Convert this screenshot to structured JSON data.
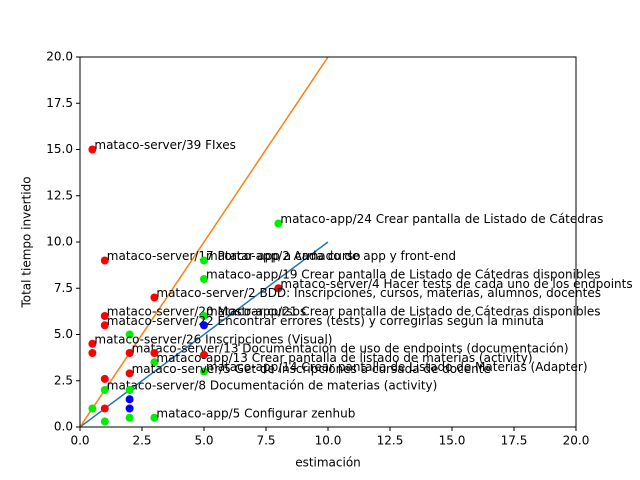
{
  "chart_data": {
    "type": "scatter",
    "xlabel": "estimación",
    "ylabel": "Total tiempo invertido",
    "xlim": [
      0,
      20
    ],
    "ylim": [
      0,
      20
    ],
    "xticks": [
      {
        "value": 0,
        "label": "0.0"
      },
      {
        "value": 2.5,
        "label": "2.5"
      },
      {
        "value": 5,
        "label": "5.0"
      },
      {
        "value": 7.5,
        "label": "7.5"
      },
      {
        "value": 10,
        "label": "10.0"
      },
      {
        "value": 12.5,
        "label": "12.5"
      },
      {
        "value": 15,
        "label": "15.0"
      },
      {
        "value": 17.5,
        "label": "17.5"
      },
      {
        "value": 20,
        "label": "20.0"
      }
    ],
    "yticks": [
      {
        "value": 0,
        "label": "0.0"
      },
      {
        "value": 2.5,
        "label": "2.5"
      },
      {
        "value": 5,
        "label": "5.0"
      },
      {
        "value": 7.5,
        "label": "7.5"
      },
      {
        "value": 10,
        "label": "10.0"
      },
      {
        "value": 12.5,
        "label": "12.5"
      },
      {
        "value": 15,
        "label": "15.0"
      },
      {
        "value": 17.5,
        "label": "17.5"
      },
      {
        "value": 20,
        "label": "20.0"
      }
    ],
    "lines": [
      {
        "color": "#1f77b4",
        "x": [
          0,
          10
        ],
        "values": [
          0,
          10
        ]
      },
      {
        "color": "#ff7f0e",
        "x": [
          0,
          10
        ],
        "values": [
          0,
          20
        ]
      }
    ],
    "points": [
      {
        "x": 0.5,
        "y": 15,
        "color": "#ff0000",
        "label": "mataco-server/39 FIxes"
      },
      {
        "x": 1,
        "y": 9,
        "color": "#ff0000",
        "label": "mataco-server/17 Portar app a cada curso"
      },
      {
        "x": 5,
        "y": 9,
        "color": "#00ee00",
        "label": "mataco-app/2 Armado de app y front-end"
      },
      {
        "x": 8,
        "y": 11,
        "color": "#00ee00",
        "label": "mataco-app/24 Crear pantalla de Listado de Cátedras"
      },
      {
        "x": 5,
        "y": 8,
        "color": "#00ee00",
        "label": "mataco-app/19 Crear pantalla de Listado de Cátedras disponibles"
      },
      {
        "x": 8,
        "y": 7.5,
        "color": "#ff0000",
        "label": "mataco-server/4 Hacer tests de cada uno de los endpoints"
      },
      {
        "x": 3,
        "y": 7,
        "color": "#ff0000",
        "label": "mataco-server/2 BDD: Inscripciones, cursos, materias, alumnos, docentes"
      },
      {
        "x": 1,
        "y": 6,
        "color": "#ff0000",
        "label": "mataco-server/20 Mostrar cursos"
      },
      {
        "x": 5,
        "y": 6,
        "color": "#00ee00",
        "label": "mataco-app/21 Crear pantalla de Listado de Cátedras disponibles"
      },
      {
        "x": 1,
        "y": 5.5,
        "color": "#ff0000",
        "label": "mataco-server/22 Encontrar errores (tests) y corregirlas según la minuta"
      },
      {
        "x": 5,
        "y": 5.5,
        "color": "#0000ff"
      },
      {
        "x": 2,
        "y": 5,
        "color": "#00ee00"
      },
      {
        "x": 0.5,
        "y": 4.5,
        "color": "#ff0000",
        "label": "mataco-server/26 Inscripciones (Visual)"
      },
      {
        "x": 0.5,
        "y": 4,
        "color": "#ff0000"
      },
      {
        "x": 2,
        "y": 4,
        "color": "#ff0000",
        "label": "mataco-server/13 Documentación de uso de endpoints (documentación)"
      },
      {
        "x": 3,
        "y": 4,
        "color": "#ff0000"
      },
      {
        "x": 5,
        "y": 3.9,
        "color": "#ff0000"
      },
      {
        "x": 3,
        "y": 3.5,
        "color": "#00ee00",
        "label": "mataco-app/13 Crear pantalla de listado de materias (activity)"
      },
      {
        "x": 5,
        "y": 3,
        "color": "#00ee00",
        "label": "mataco-app/14 Crear pantalla de Listado de Materias (Adapter)"
      },
      {
        "x": 2,
        "y": 2.9,
        "color": "#ff0000",
        "label": "mataco-server/5 Get de inscripciones a cursada de docente"
      },
      {
        "x": 1,
        "y": 2.6,
        "color": "#ff0000"
      },
      {
        "x": 1,
        "y": 2,
        "color": "#00ee00",
        "label": "mataco-server/8 Documentación de materias (activity)"
      },
      {
        "x": 2,
        "y": 2,
        "color": "#00ee00"
      },
      {
        "x": 2,
        "y": 1.5,
        "color": "#0000ff"
      },
      {
        "x": 0.5,
        "y": 1,
        "color": "#00ee00"
      },
      {
        "x": 1,
        "y": 1,
        "color": "#ff0000"
      },
      {
        "x": 2,
        "y": 1,
        "color": "#0000ff"
      },
      {
        "x": 1,
        "y": 0.3,
        "color": "#00ee00"
      },
      {
        "x": 2,
        "y": 0.5,
        "color": "#00ee00"
      },
      {
        "x": 3,
        "y": 0.5,
        "color": "#00ee00",
        "label": "mataco-app/5 Configurar zenhub"
      }
    ]
  }
}
